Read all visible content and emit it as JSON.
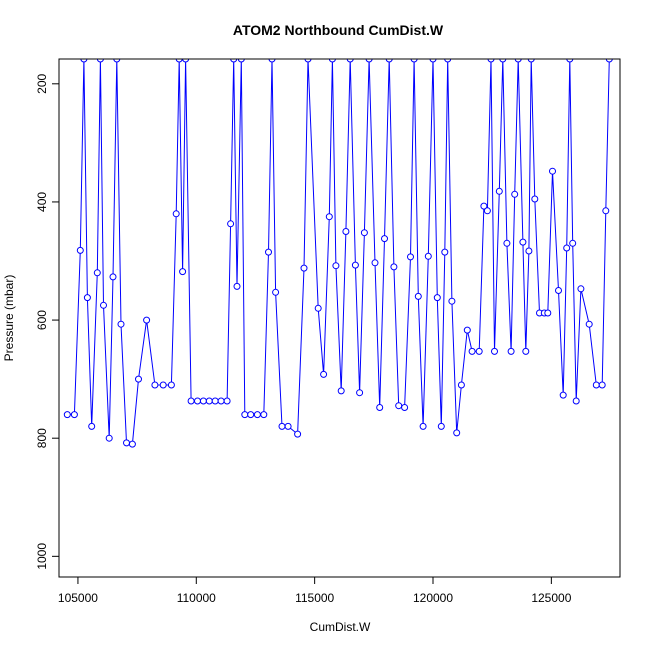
{
  "chart_data": {
    "type": "line",
    "title": "ATOM2 Northbound CumDist.W",
    "xlabel": "CumDist.W",
    "ylabel": "Pressure (mbar)",
    "xlim": [
      104200,
      127900
    ],
    "ylim": [
      1035,
      158
    ],
    "y_reversed": true,
    "grid": false,
    "legend": "none",
    "markers": "open-circle",
    "line_color": "#0000ff",
    "x_ticks": [
      105000,
      110000,
      115000,
      120000,
      125000
    ],
    "x_tick_labels": [
      "105000",
      "110000",
      "115000",
      "120000",
      "125000"
    ],
    "y_ticks": [
      200,
      400,
      600,
      800,
      1000
    ],
    "y_tick_labels": [
      "200",
      "400",
      "600",
      "800",
      "1000"
    ],
    "series": [
      {
        "x": [
          104550,
          104850,
          105100,
          105250,
          105400,
          105580,
          105820,
          105950,
          106080,
          106320,
          106480,
          106640,
          106820,
          107050,
          107300,
          107560,
          107900,
          108250,
          108600,
          108950,
          109150,
          109280,
          109420,
          109550,
          109780,
          110050,
          110300,
          110550,
          110800,
          111050,
          111300,
          111450,
          111580,
          111720,
          111900,
          112050,
          112300,
          112580,
          112850,
          113050,
          113200,
          113350,
          113620,
          113880,
          114280,
          114550,
          114720,
          115150,
          115380,
          115620,
          115750,
          115900,
          116120,
          116320,
          116500,
          116720,
          116900,
          117100,
          117300,
          117550,
          117750,
          117950,
          118150,
          118350,
          118550,
          118800,
          119050,
          119200,
          119380,
          119580,
          119800,
          120000,
          120180,
          120350,
          120500,
          120620,
          120800,
          121000,
          121200,
          121450,
          121650,
          121950,
          122150,
          122300,
          122450,
          122600,
          122800,
          122950,
          123120,
          123300,
          123450,
          123600,
          123800,
          123920,
          124050,
          124150,
          124300,
          124500,
          124700,
          124850,
          125050,
          125300,
          125500,
          125650,
          125780,
          125900,
          126050,
          126250,
          126600,
          126900,
          127150,
          127300,
          127450
        ],
        "y": [
          760,
          760,
          482,
          158,
          562,
          780,
          520,
          158,
          575,
          800,
          527,
          158,
          607,
          808,
          810,
          700,
          600,
          710,
          710,
          710,
          420,
          158,
          518,
          158,
          737,
          737,
          737,
          737,
          737,
          737,
          737,
          437,
          158,
          543,
          158,
          760,
          760,
          760,
          760,
          485,
          158,
          553,
          780,
          780,
          793,
          512,
          158,
          580,
          692,
          425,
          158,
          508,
          720,
          450,
          158,
          507,
          723,
          452,
          158,
          503,
          748,
          462,
          158,
          510,
          745,
          748,
          493,
          158,
          560,
          780,
          492,
          158,
          562,
          780,
          485,
          158,
          568,
          791,
          710,
          617,
          653,
          653,
          407,
          415,
          158,
          653,
          382,
          158,
          470,
          653,
          387,
          158,
          468,
          653,
          483,
          158,
          395,
          588,
          588,
          588,
          348,
          550,
          727,
          478,
          158,
          470,
          737,
          547,
          607,
          710,
          710,
          415,
          158
        ]
      }
    ]
  }
}
